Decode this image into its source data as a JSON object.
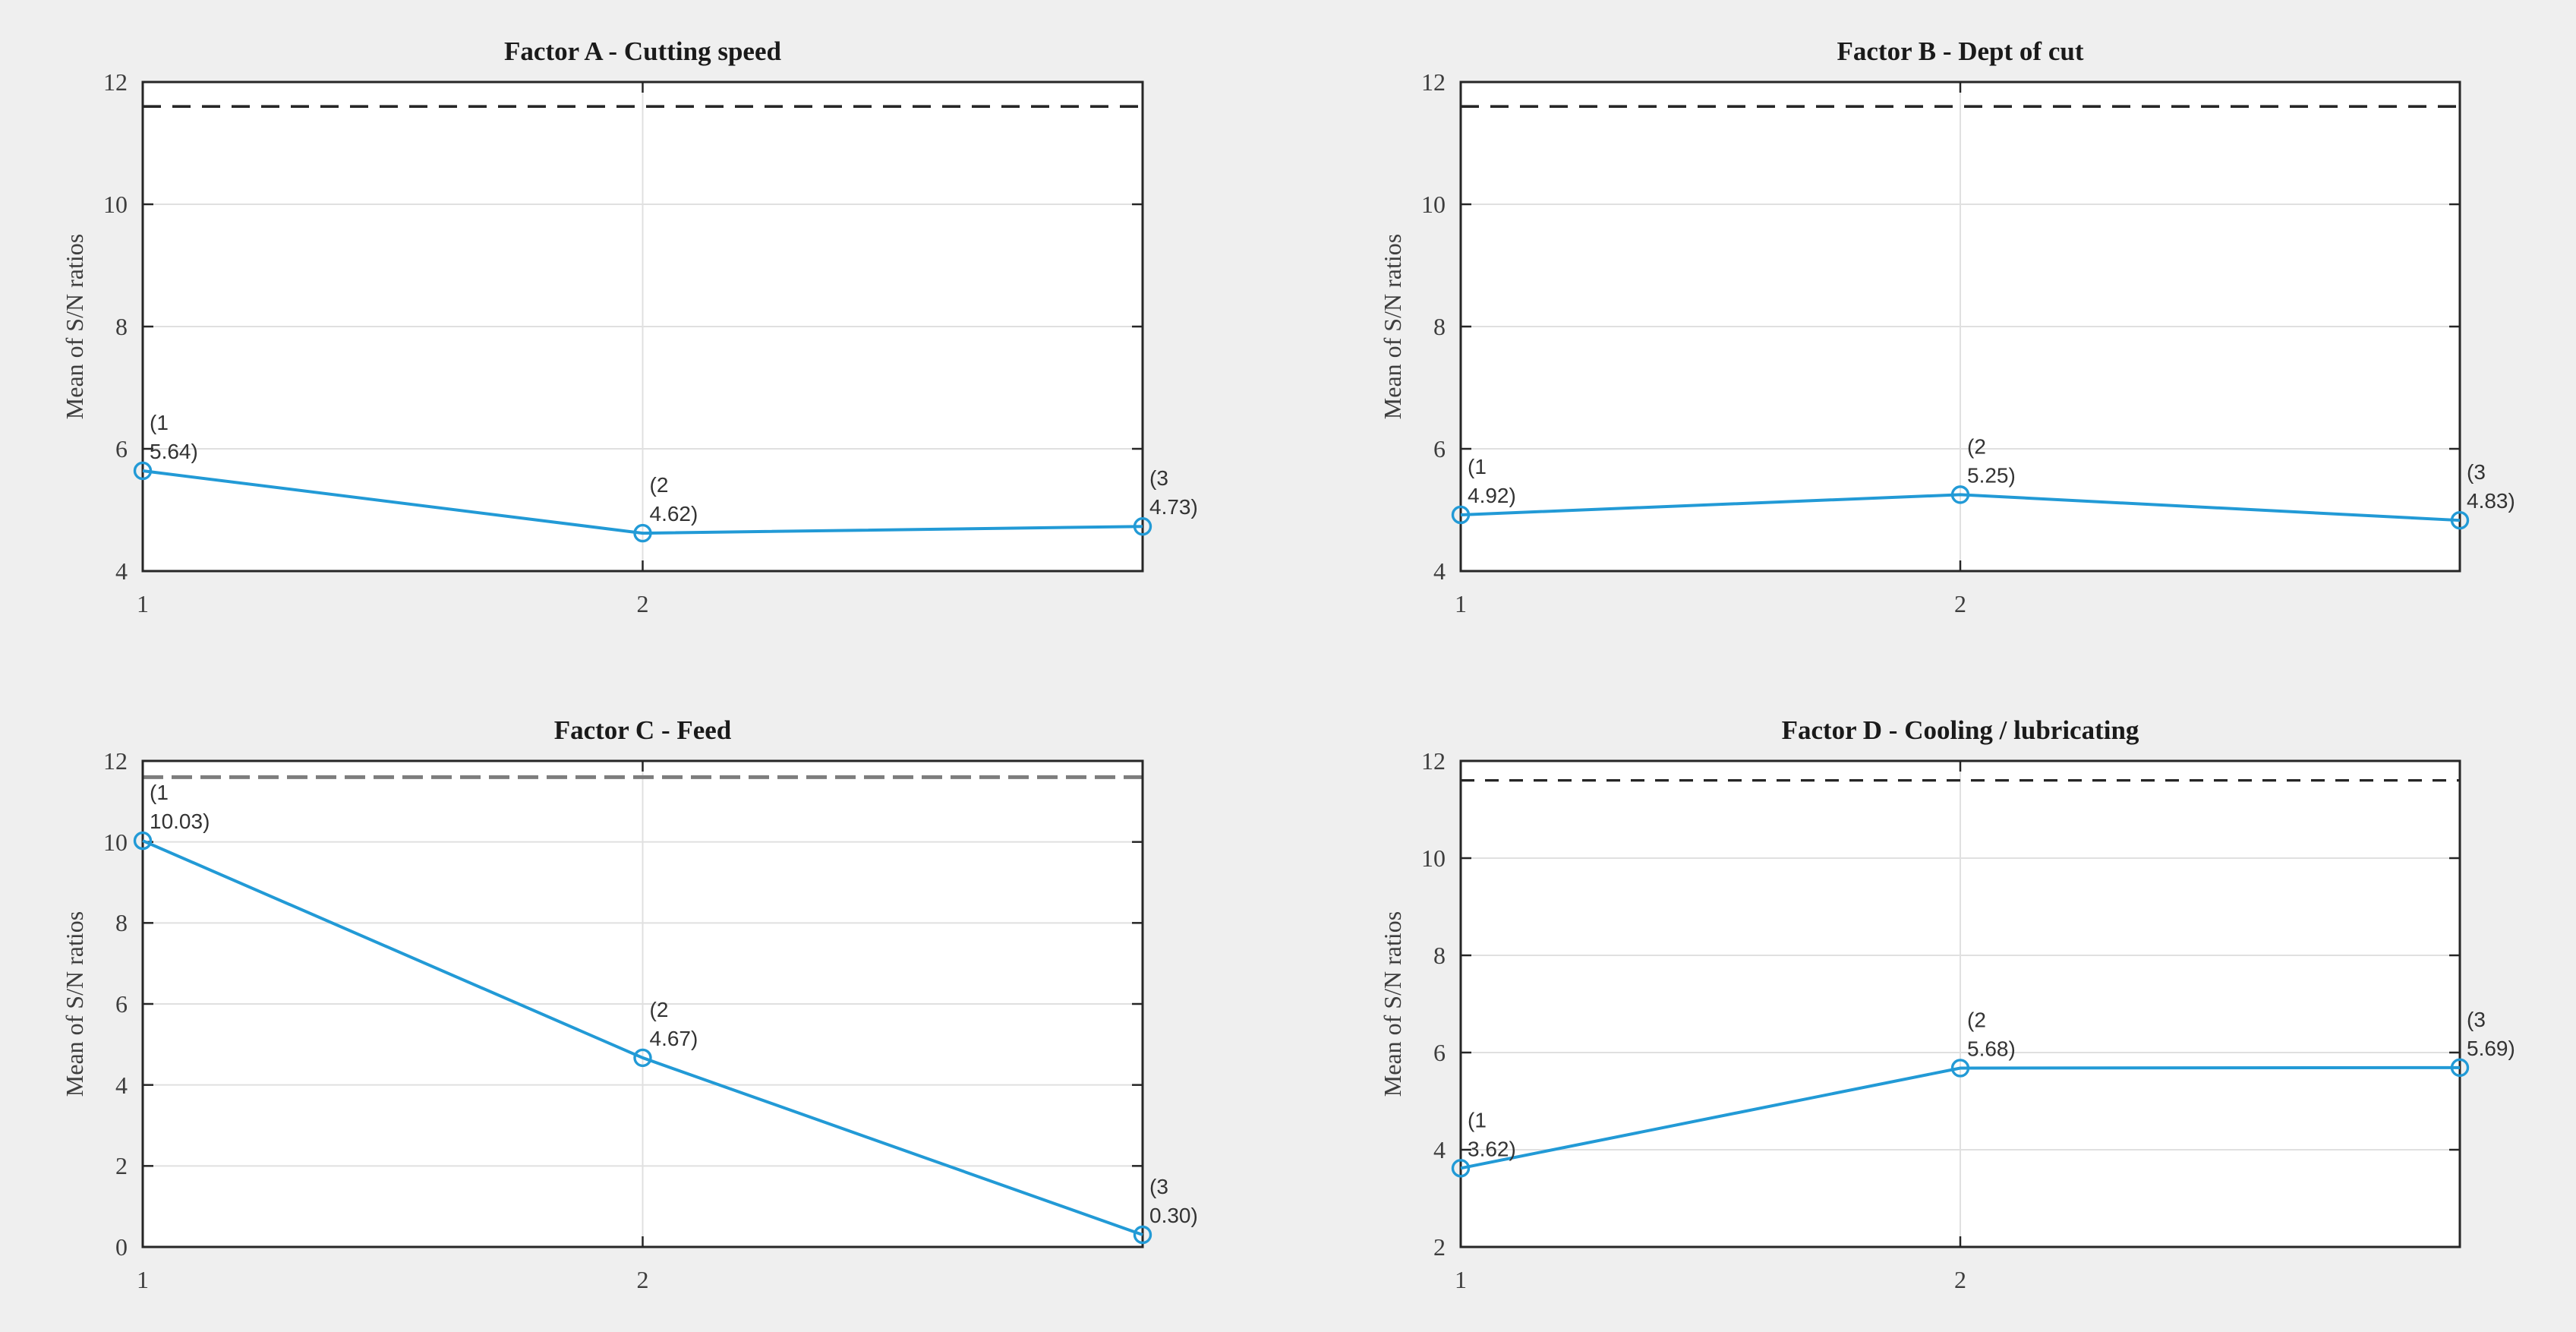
{
  "figure": {
    "background": "#efefef",
    "plot_background": "#ffffff",
    "axis_color": "#262626",
    "grid_color": "#e0e0e0",
    "series_color": "#229ad6",
    "tick_text_color": "#3d3d3d",
    "annotation_text_color": "#333333"
  },
  "chart_data": [
    {
      "type": "line",
      "title": "Factor A - Cutting speed",
      "ylabel": "Mean of S/N ratios",
      "x": [
        1,
        2,
        3
      ],
      "values": [
        5.64,
        4.62,
        4.73
      ],
      "point_labels": [
        [
          "(1",
          "5.64)"
        ],
        [
          "(2",
          "4.62)"
        ],
        [
          "(3",
          "4.73)"
        ]
      ],
      "xlim": [
        1,
        3
      ],
      "ylim": [
        4,
        12
      ],
      "yticks": [
        4,
        6,
        8,
        10,
        12
      ],
      "xtick_values": [
        1,
        2
      ],
      "xtick_labels": [
        "1",
        "2"
      ],
      "grid": true,
      "legend": "none",
      "marker": "circle",
      "ref_line": {
        "value": 11.6,
        "style": "dashed",
        "color": "#262626"
      }
    },
    {
      "type": "line",
      "title": "Factor B - Dept of cut",
      "ylabel": "Mean of S/N ratios",
      "x": [
        1,
        2,
        3
      ],
      "values": [
        4.92,
        5.25,
        4.83
      ],
      "point_labels": [
        [
          "(1",
          "4.92)"
        ],
        [
          "(2",
          "5.25)"
        ],
        [
          "(3",
          "4.83)"
        ]
      ],
      "xlim": [
        1,
        3
      ],
      "ylim": [
        4,
        12
      ],
      "yticks": [
        4,
        6,
        8,
        10,
        12
      ],
      "xtick_values": [
        1,
        2
      ],
      "xtick_labels": [
        "1",
        "2"
      ],
      "grid": true,
      "legend": "none",
      "marker": "circle",
      "ref_line": {
        "value": 11.6,
        "style": "dashed",
        "color": "#262626"
      }
    },
    {
      "type": "line",
      "title": "Factor C - Feed",
      "ylabel": "Mean of S/N ratios",
      "x": [
        1,
        2,
        3
      ],
      "values": [
        10.03,
        4.67,
        0.3
      ],
      "point_labels": [
        [
          "(1",
          "10.03)"
        ],
        [
          "(2",
          "4.67)"
        ],
        [
          "(3",
          "0.30)"
        ]
      ],
      "xlim": [
        1,
        3
      ],
      "ylim": [
        0,
        12
      ],
      "yticks": [
        0,
        2,
        4,
        6,
        8,
        10,
        12
      ],
      "xtick_values": [
        1,
        2
      ],
      "xtick_labels": [
        "1",
        "2"
      ],
      "grid": true,
      "legend": "none",
      "marker": "circle",
      "ref_line": {
        "value": 11.6,
        "style": "dashed",
        "color": "#7d7d7d"
      }
    },
    {
      "type": "line",
      "title": "Factor D - Cooling / lubricating",
      "ylabel": "Mean of S/N ratios",
      "x": [
        1,
        2,
        3
      ],
      "values": [
        3.62,
        5.68,
        5.69
      ],
      "point_labels": [
        [
          "(1",
          "3.62)"
        ],
        [
          "(2",
          "5.68)"
        ],
        [
          "(3",
          "5.69)"
        ]
      ],
      "xlim": [
        1,
        3
      ],
      "ylim": [
        2,
        12
      ],
      "yticks": [
        2,
        4,
        6,
        8,
        10,
        12
      ],
      "xtick_values": [
        1,
        2
      ],
      "xtick_labels": [
        "1",
        "2"
      ],
      "grid": true,
      "legend": "none",
      "marker": "circle",
      "ref_line": {
        "value": 11.6,
        "style": "dashed",
        "color": "#262626"
      }
    }
  ]
}
